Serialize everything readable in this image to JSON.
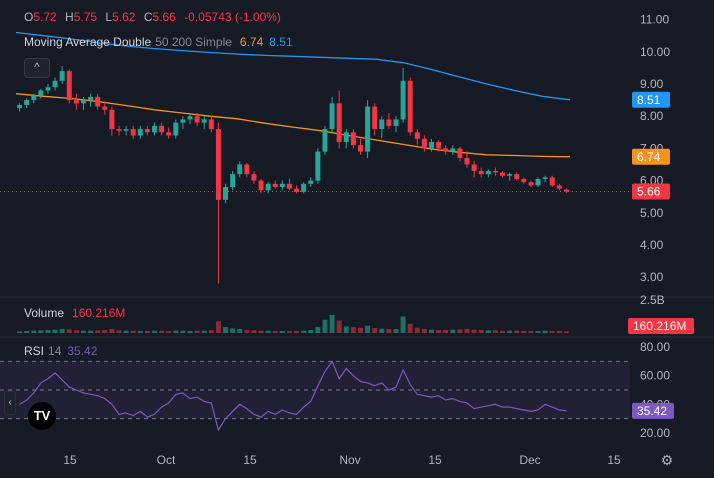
{
  "ohlc": {
    "o_label": "O",
    "o_value": "5.72",
    "h_label": "H",
    "h_value": "5.75",
    "l_label": "L",
    "l_value": "5.62",
    "c_label": "C",
    "c_value": "5.66",
    "change": "-0.05743 (-1.00%)"
  },
  "ma": {
    "name": "Moving Average Double",
    "params": "50 200 Simple",
    "fast_value": "6.74",
    "slow_value": "8.51"
  },
  "volume": {
    "name": "Volume",
    "value": "160.216M"
  },
  "rsi": {
    "name": "RSI",
    "length": "14",
    "value": "35.42"
  },
  "collapse_glyph": "^",
  "logo_text": "TV",
  "colors": {
    "background": "#161a25",
    "up": "#26a69a",
    "down": "#f23645",
    "ma_fast": "#f7931a",
    "ma_slow": "#2196f3",
    "rsi_line": "#7e57c2",
    "rsi_band": "#2a2440",
    "grid_text": "#b2b5be"
  },
  "chart_data": [
    {
      "type": "candlestick",
      "title": "",
      "x_ticks": [
        "15",
        "Oct",
        "15",
        "Nov",
        "15",
        "Dec",
        "15"
      ],
      "y_ticks": [
        "11.00",
        "10.00",
        "9.00",
        "8.00",
        "7.00",
        "6.00",
        "5.00",
        "4.00",
        "3.00"
      ],
      "ylim": [
        2.6,
        11.3
      ],
      "last_price_label": "5.66",
      "series": [
        {
          "name": "price",
          "candles": [
            [
              8.25,
              8.4,
              8.15,
              8.35
            ],
            [
              8.35,
              8.55,
              8.25,
              8.5
            ],
            [
              8.5,
              8.7,
              8.4,
              8.65
            ],
            [
              8.65,
              8.85,
              8.55,
              8.8
            ],
            [
              8.8,
              9.0,
              8.7,
              8.9
            ],
            [
              8.9,
              9.2,
              8.8,
              9.1
            ],
            [
              9.1,
              9.55,
              9.0,
              9.4
            ],
            [
              9.4,
              9.45,
              8.4,
              8.5
            ],
            [
              8.5,
              8.7,
              8.2,
              8.4
            ],
            [
              8.4,
              8.6,
              8.2,
              8.5
            ],
            [
              8.5,
              8.7,
              8.3,
              8.6
            ],
            [
              8.6,
              8.7,
              8.2,
              8.3
            ],
            [
              8.3,
              8.45,
              8.05,
              8.2
            ],
            [
              8.2,
              8.3,
              7.4,
              7.6
            ],
            [
              7.6,
              7.7,
              7.4,
              7.55
            ],
            [
              7.55,
              7.7,
              7.4,
              7.6
            ],
            [
              7.6,
              7.7,
              7.3,
              7.4
            ],
            [
              7.4,
              7.7,
              7.3,
              7.6
            ],
            [
              7.6,
              7.7,
              7.4,
              7.5
            ],
            [
              7.5,
              7.8,
              7.4,
              7.7
            ],
            [
              7.7,
              7.8,
              7.4,
              7.5
            ],
            [
              7.5,
              7.65,
              7.3,
              7.4
            ],
            [
              7.4,
              7.9,
              7.3,
              7.8
            ],
            [
              7.8,
              8.0,
              7.6,
              7.9
            ],
            [
              7.9,
              8.05,
              7.75,
              8.0
            ],
            [
              8.0,
              8.1,
              7.7,
              7.8
            ],
            [
              7.8,
              8.0,
              7.6,
              7.9
            ],
            [
              7.9,
              8.0,
              7.5,
              7.6
            ],
            [
              7.6,
              7.8,
              2.8,
              5.4
            ],
            [
              5.4,
              5.9,
              5.3,
              5.8
            ],
            [
              5.8,
              6.3,
              5.7,
              6.2
            ],
            [
              6.2,
              6.6,
              6.1,
              6.5
            ],
            [
              6.5,
              6.55,
              6.1,
              6.2
            ],
            [
              6.2,
              6.3,
              5.9,
              6.0
            ],
            [
              6.0,
              6.05,
              5.6,
              5.7
            ],
            [
              5.7,
              5.95,
              5.6,
              5.9
            ],
            [
              5.9,
              6.0,
              5.75,
              5.8
            ],
            [
              5.8,
              6.0,
              5.7,
              5.9
            ],
            [
              5.9,
              6.05,
              5.7,
              5.75
            ],
            [
              5.75,
              5.85,
              5.6,
              5.65
            ],
            [
              5.65,
              5.95,
              5.6,
              5.9
            ],
            [
              5.9,
              6.1,
              5.8,
              6.0
            ],
            [
              6.0,
              7.0,
              5.9,
              6.9
            ],
            [
              6.9,
              7.7,
              6.8,
              7.6
            ],
            [
              7.6,
              8.6,
              7.5,
              8.4
            ],
            [
              8.4,
              8.8,
              7.0,
              7.2
            ],
            [
              7.2,
              7.6,
              7.0,
              7.5
            ],
            [
              7.5,
              7.6,
              7.0,
              7.1
            ],
            [
              7.1,
              7.3,
              6.8,
              6.9
            ],
            [
              6.9,
              8.5,
              6.7,
              8.3
            ],
            [
              8.3,
              8.4,
              7.4,
              7.6
            ],
            [
              7.6,
              8.0,
              7.3,
              7.9
            ],
            [
              7.9,
              8.1,
              7.6,
              7.7
            ],
            [
              7.7,
              8.0,
              7.5,
              7.9
            ],
            [
              7.9,
              9.5,
              7.8,
              9.1
            ],
            [
              9.1,
              9.2,
              7.4,
              7.5
            ],
            [
              7.5,
              7.6,
              7.1,
              7.3
            ],
            [
              7.3,
              7.4,
              6.9,
              7.0
            ],
            [
              7.0,
              7.3,
              6.9,
              7.2
            ],
            [
              7.2,
              7.25,
              6.9,
              7.0
            ],
            [
              7.0,
              7.1,
              6.8,
              6.9
            ],
            [
              6.9,
              7.1,
              6.8,
              7.0
            ],
            [
              7.0,
              7.05,
              6.6,
              6.7
            ],
            [
              6.7,
              6.9,
              6.4,
              6.5
            ],
            [
              6.5,
              6.6,
              6.1,
              6.3
            ],
            [
              6.3,
              6.4,
              6.1,
              6.2
            ],
            [
              6.2,
              6.35,
              6.1,
              6.3
            ],
            [
              6.3,
              6.4,
              6.15,
              6.25
            ],
            [
              6.25,
              6.3,
              6.1,
              6.15
            ],
            [
              6.15,
              6.25,
              6.0,
              6.2
            ],
            [
              6.2,
              6.25,
              6.0,
              6.05
            ],
            [
              6.05,
              6.1,
              5.9,
              5.95
            ],
            [
              5.95,
              6.0,
              5.8,
              5.85
            ],
            [
              5.85,
              6.1,
              5.8,
              6.05
            ],
            [
              6.05,
              6.15,
              5.95,
              6.1
            ],
            [
              6.1,
              6.15,
              5.8,
              5.85
            ],
            [
              5.85,
              5.9,
              5.7,
              5.75
            ],
            [
              5.72,
              5.75,
              5.62,
              5.66
            ]
          ]
        },
        {
          "name": "MA 50",
          "values": [
            8.7,
            8.62,
            8.55,
            8.45,
            8.33,
            8.2,
            8.1,
            8.0,
            7.92,
            7.78,
            7.66,
            7.55,
            7.4,
            7.26,
            7.12,
            6.98,
            6.88,
            6.8,
            6.78,
            6.75,
            6.74
          ]
        },
        {
          "name": "MA 200",
          "values": [
            10.6,
            10.5,
            10.4,
            10.28,
            10.18,
            10.1,
            10.04,
            9.98,
            9.93,
            9.89,
            9.86,
            9.83,
            9.8,
            9.77,
            9.66,
            9.45,
            9.22,
            9.0,
            8.8,
            8.62,
            8.51
          ]
        }
      ],
      "price_badges": [
        {
          "label": "8.51",
          "value": 8.51,
          "color": "#2196f3"
        },
        {
          "label": "6.74",
          "value": 6.74,
          "color": "#f7931a"
        },
        {
          "label": "5.66",
          "value": 5.66,
          "color": "#f23645"
        }
      ]
    },
    {
      "type": "bar",
      "title": "Volume",
      "y_ticks": [
        "2.5B"
      ],
      "last_label": "160.216M",
      "values": [
        0.05,
        0.06,
        0.07,
        0.08,
        0.09,
        0.1,
        0.12,
        0.11,
        0.08,
        0.07,
        0.07,
        0.08,
        0.09,
        0.12,
        0.08,
        0.07,
        0.07,
        0.06,
        0.06,
        0.07,
        0.07,
        0.06,
        0.07,
        0.07,
        0.06,
        0.07,
        0.07,
        0.09,
        0.35,
        0.18,
        0.14,
        0.12,
        0.09,
        0.08,
        0.07,
        0.07,
        0.06,
        0.06,
        0.06,
        0.06,
        0.07,
        0.09,
        0.18,
        0.4,
        0.55,
        0.38,
        0.2,
        0.18,
        0.16,
        0.22,
        0.15,
        0.13,
        0.12,
        0.12,
        0.5,
        0.28,
        0.16,
        0.12,
        0.1,
        0.09,
        0.09,
        0.1,
        0.11,
        0.12,
        0.1,
        0.09,
        0.08,
        0.08,
        0.07,
        0.07,
        0.07,
        0.06,
        0.06,
        0.06,
        0.07,
        0.06,
        0.06,
        0.05
      ],
      "up": [
        true,
        true,
        true,
        true,
        true,
        true,
        true,
        false,
        false,
        true,
        true,
        false,
        false,
        false,
        false,
        true,
        false,
        true,
        false,
        true,
        false,
        false,
        true,
        true,
        true,
        false,
        true,
        false,
        false,
        true,
        true,
        true,
        false,
        false,
        false,
        true,
        false,
        true,
        false,
        false,
        true,
        true,
        true,
        true,
        true,
        false,
        true,
        false,
        false,
        true,
        false,
        true,
        false,
        true,
        true,
        false,
        false,
        false,
        true,
        false,
        false,
        true,
        false,
        false,
        false,
        false,
        true,
        false,
        false,
        true,
        false,
        false,
        false,
        true,
        true,
        false,
        false,
        false
      ]
    },
    {
      "type": "line",
      "title": "RSI",
      "y_ticks": [
        "80.00",
        "60.00",
        "40.00",
        "20.00"
      ],
      "ylim": [
        15,
        85
      ],
      "bands": [
        70,
        50,
        30
      ],
      "last_label": "35.42",
      "values": [
        40,
        43,
        48,
        55,
        58,
        62,
        57,
        52,
        50,
        48,
        47,
        46,
        44,
        40,
        33,
        34,
        32,
        35,
        31,
        33,
        38,
        41,
        47,
        48,
        44,
        45,
        42,
        41,
        22,
        30,
        35,
        40,
        37,
        33,
        31,
        35,
        33,
        36,
        34,
        33,
        38,
        42,
        53,
        63,
        70,
        58,
        65,
        60,
        56,
        55,
        53,
        55,
        50,
        52,
        64,
        54,
        47,
        46,
        45,
        46,
        43,
        44,
        42,
        41,
        37,
        38,
        39,
        40,
        38,
        38,
        37,
        36,
        35,
        36,
        40,
        38,
        36,
        35.42
      ]
    }
  ]
}
